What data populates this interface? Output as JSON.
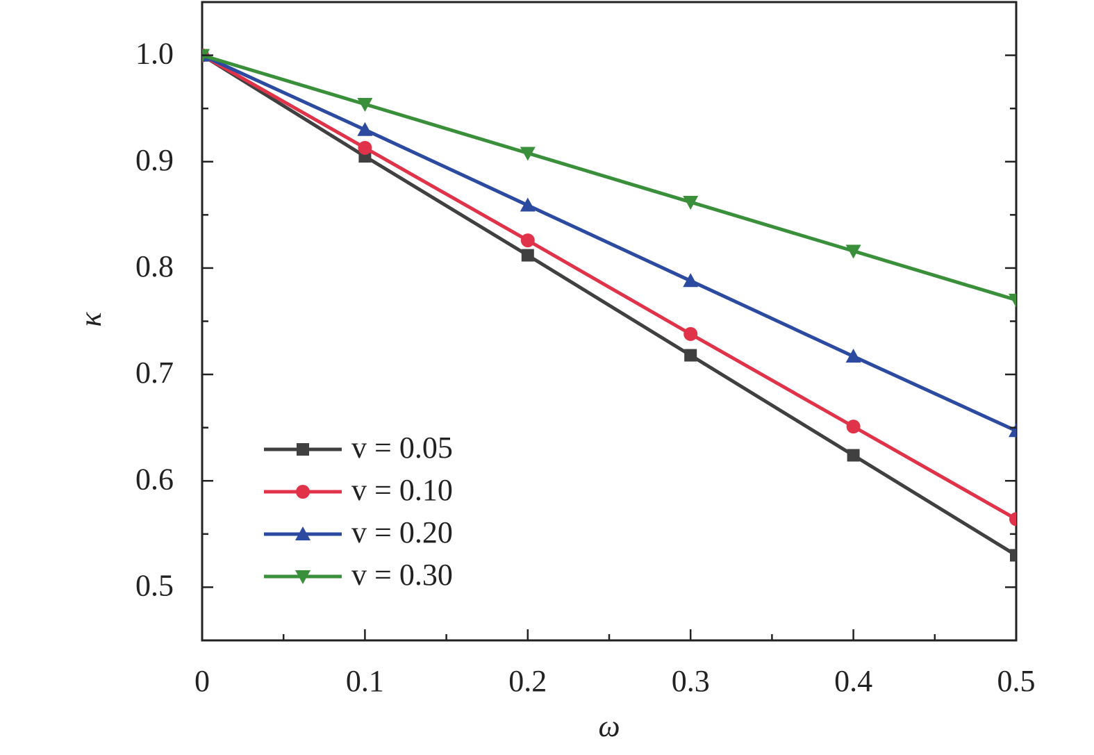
{
  "chart_data": {
    "type": "line",
    "x_label": "ω",
    "y_label": "κ",
    "x": [
      0,
      0.1,
      0.2,
      0.3,
      0.4,
      0.5
    ],
    "series": [
      {
        "name": "v = 0.05",
        "color": "#404040",
        "marker": "square",
        "values": [
          1.0,
          0.905,
          0.812,
          0.718,
          0.624,
          0.53
        ]
      },
      {
        "name": "v = 0.10",
        "color": "#e0334a",
        "marker": "circle",
        "values": [
          1.0,
          0.913,
          0.826,
          0.738,
          0.651,
          0.564
        ]
      },
      {
        "name": "v = 0.20",
        "color": "#2b4aa0",
        "marker": "triangle-up",
        "values": [
          1.0,
          0.93,
          0.859,
          0.788,
          0.717,
          0.647
        ]
      },
      {
        "name": "v = 0.30",
        "color": "#3a8f3a",
        "marker": "triangle-down",
        "values": [
          1.0,
          0.954,
          0.908,
          0.862,
          0.816,
          0.77
        ]
      }
    ],
    "xlim": [
      0,
      0.5
    ],
    "ylim": [
      0.45,
      1.05
    ],
    "xticks": [
      0,
      0.1,
      0.2,
      0.3,
      0.4,
      0.5
    ],
    "yticks": [
      0.5,
      0.6,
      0.7,
      0.8,
      0.9,
      {
        "value": 1,
        "label": "1.0"
      }
    ],
    "legend": "lower left"
  }
}
